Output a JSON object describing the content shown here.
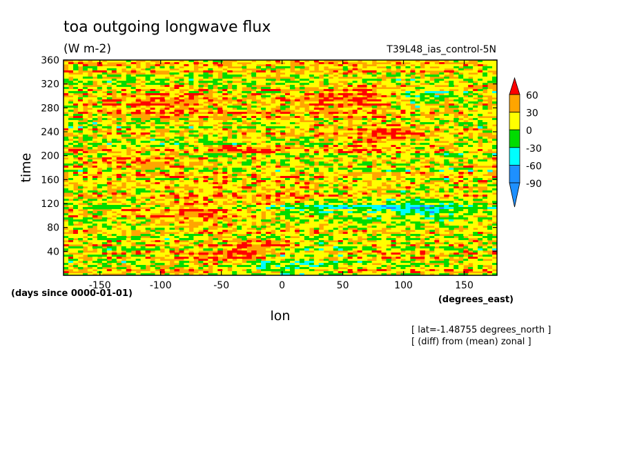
{
  "chart_data": {
    "type": "heatmap",
    "title": "toa outgoing longwave flux",
    "units": "(W m-2)",
    "run_label": "T39L48_ias_control-5N",
    "xlabel": "lon",
    "ylabel": "time",
    "x_units": "(degrees_east)",
    "y_units": "(days since 0000-01-01)",
    "annotations": [
      "[ lat=-1.48755 degrees_north ]",
      "[ (diff) from (mean) zonal ]"
    ],
    "xlim": [
      -180,
      177
    ],
    "ylim": [
      0,
      360
    ],
    "x_ticks": [
      -150,
      -100,
      -50,
      0,
      50,
      100,
      150
    ],
    "x_tick_labels": [
      "-150",
      "-100",
      "-50",
      "0",
      "50",
      "100",
      "150"
    ],
    "y_ticks": [
      40,
      80,
      120,
      160,
      200,
      240,
      280,
      320,
      360
    ],
    "y_tick_labels": [
      "40",
      "80",
      "120",
      "160",
      "200",
      "240",
      "280",
      "320",
      "360"
    ],
    "grid": false,
    "colorbar": {
      "placement": "right",
      "levels": [
        60,
        30,
        0,
        -30,
        -60,
        -90
      ],
      "labels": [
        "60",
        "30",
        "0",
        "-30",
        "-60",
        "-90"
      ],
      "colors": [
        "#ff0000",
        "#ffa500",
        "#ffff00",
        "#00dc00",
        "#00ffff",
        "#1e90ff",
        "#0000c8"
      ],
      "extend": "both"
    },
    "field_description_values": {
      "rows": 36,
      "cols": 72,
      "value_range": [
        -120,
        90
      ]
    }
  }
}
